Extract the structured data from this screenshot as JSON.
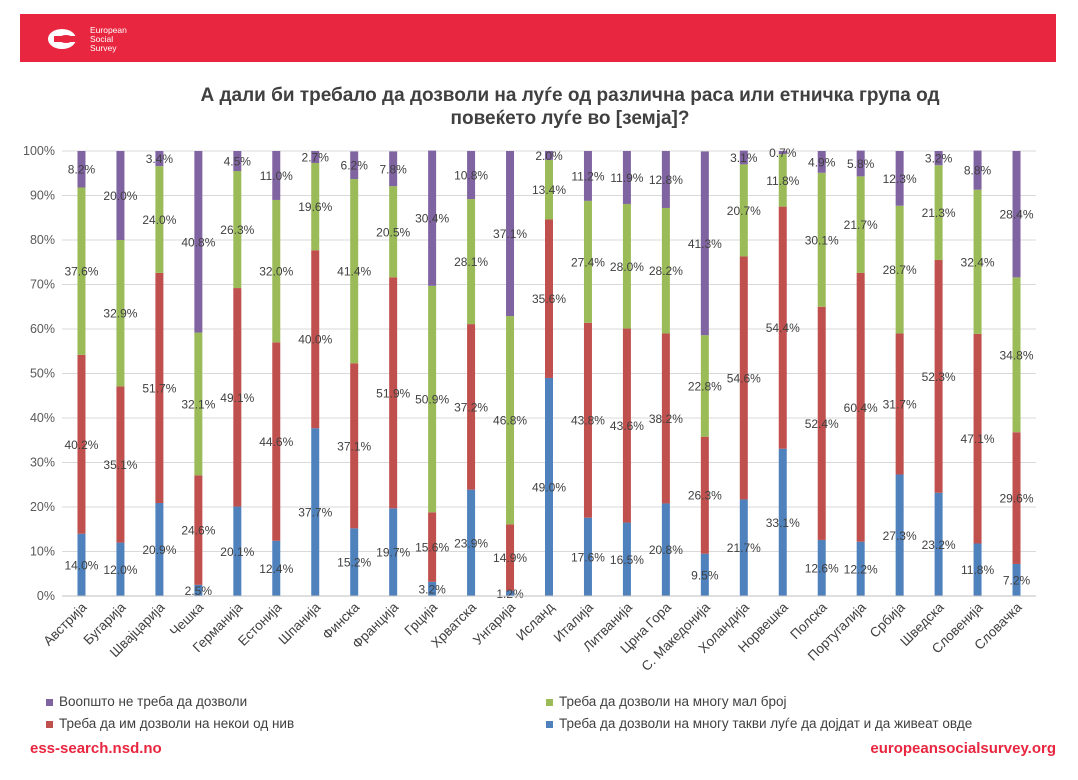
{
  "header": {
    "logo_lines": [
      "European",
      "Social",
      "Survey"
    ],
    "brand_color": "#e8263f"
  },
  "title_lines": [
    "А дали би требало да дозволи на луѓе од различна раса или етничка група од",
    "повеќето луѓе во [земја]?"
  ],
  "chart_data": {
    "type": "bar",
    "stacked": true,
    "percent_stacked": true,
    "ylim": [
      0,
      100
    ],
    "y_ticks": [
      "0%",
      "10%",
      "20%",
      "30%",
      "40%",
      "50%",
      "60%",
      "70%",
      "80%",
      "90%",
      "100%"
    ],
    "grid": true,
    "legend_position": "bottom",
    "categories": [
      "Австрија",
      "Бугарија",
      "Швајцарија",
      "Чешка",
      "Германија",
      "Естонија",
      "Шпанија",
      "Финска",
      "Франција",
      "Грција",
      "Хрватска",
      "Унгарија",
      "Исланд",
      "Италија",
      "Литванија",
      "Црна Гора",
      "С. Македонија",
      "Холандија",
      "Норвешка",
      "Полска",
      "Португалија",
      "Србија",
      "Шведска",
      "Словенија",
      "Словачка"
    ],
    "series": [
      {
        "name": "Треба да дозволи на многу такви луѓе да дојдат и да живеат овде",
        "color": "#4f81bd",
        "values": [
          14.0,
          12.0,
          20.9,
          2.5,
          20.1,
          12.4,
          37.7,
          15.2,
          19.7,
          3.2,
          23.9,
          1.2,
          49.0,
          17.6,
          16.5,
          20.8,
          9.5,
          21.7,
          33.1,
          12.6,
          12.2,
          27.3,
          23.2,
          11.8,
          7.2
        ],
        "labels": [
          "14.0%",
          "12.0%",
          "20.9%",
          "2.5%",
          "20.1%",
          "12.4%",
          "37.7%",
          "15.2%",
          "19.7%",
          "3.2%",
          "23.9%",
          "1.2%",
          "49.0%",
          "17.6%",
          "16.5%",
          "20.8%",
          "9.5%",
          "21.7%",
          "33.1%",
          "12.6%",
          "12.2%",
          "27.3%",
          "23.2%",
          "11.8%",
          "7.2%"
        ]
      },
      {
        "name": "Треба да им дозволи на некои од нив",
        "color": "#c0504d",
        "values": [
          40.2,
          35.1,
          51.7,
          24.6,
          49.1,
          44.6,
          40.0,
          37.1,
          51.9,
          15.6,
          37.2,
          14.9,
          35.6,
          43.8,
          43.6,
          38.2,
          26.3,
          54.6,
          54.4,
          52.4,
          60.4,
          31.7,
          52.3,
          47.1,
          29.6
        ],
        "labels": [
          "40.2%",
          "35.1%",
          "51.7%",
          "24.6%",
          "49.1%",
          "44.6%",
          "40.0%",
          "37.1%",
          "51.9%",
          "15.6%",
          "37.2%",
          "14.9%",
          "35.6%",
          "43.8%",
          "43.6%",
          "38.2%",
          "26.3%",
          "54.6%",
          "54.4%",
          "52.4%",
          "60.4%",
          "31.7%",
          "52.3%",
          "47.1%",
          "29.6%"
        ]
      },
      {
        "name": "Треба да дозволи на многу мал број",
        "color": "#9bbb59",
        "values": [
          37.6,
          32.9,
          24.0,
          32.1,
          26.3,
          32.0,
          19.6,
          41.4,
          20.5,
          50.9,
          28.1,
          46.8,
          13.4,
          27.4,
          28.0,
          28.2,
          22.8,
          20.7,
          11.8,
          30.1,
          21.7,
          28.7,
          21.3,
          32.4,
          34.8
        ],
        "labels": [
          "37.6%",
          "32.9%",
          "24.0%",
          "32.1%",
          "26.3%",
          "32.0%",
          "19.6%",
          "41.4%",
          "20.5%",
          "50.9%",
          "28.1%",
          "46.8%",
          "13.4%",
          "27.4%",
          "28.0%",
          "28.2%",
          "22.8%",
          "20.7%",
          "11.8%",
          "30.1%",
          "21.7%",
          "28.7%",
          "21.3%",
          "32.4%",
          "34.8%"
        ]
      },
      {
        "name": "Воопшто не треба да дозволи",
        "color": "#8064a2",
        "values": [
          8.2,
          20.0,
          3.4,
          40.8,
          4.5,
          11.0,
          2.7,
          6.2,
          7.8,
          30.4,
          10.8,
          37.1,
          2.0,
          11.2,
          11.9,
          12.8,
          41.3,
          3.1,
          0.7,
          4.9,
          5.8,
          12.3,
          3.2,
          8.8,
          28.4
        ],
        "labels": [
          "8.2%",
          "20.0%",
          "3.4%",
          "40.8%",
          "4.5%",
          "11.0%",
          "2.7%",
          "6.2%",
          "7.8%",
          "30.4%",
          "10.8%",
          "37.1%",
          "2.0%",
          "11.2%",
          "11.9%",
          "12.8%",
          "41.3%",
          "3.1%",
          "0.7%",
          "4.9%",
          "5.8%",
          "12.3%",
          "3.2%",
          "8.8%",
          "28.4%"
        ]
      }
    ]
  },
  "legend": {
    "left_top": "Воопшто не треба да дозволи",
    "right_top": "Треба да дозволи на многу мал број",
    "left_bottom": "Треба да им дозволи на некои од нив",
    "right_bottom": "Треба да дозволи на многу такви луѓе да дојдат и да живеат овде",
    "colors": {
      "purple": "#8064a2",
      "green": "#9bbb59",
      "red": "#c0504d",
      "blue": "#4f81bd"
    }
  },
  "footer": {
    "left": "ess-search.nsd.no",
    "right": "europeansocialsurvey.org"
  }
}
